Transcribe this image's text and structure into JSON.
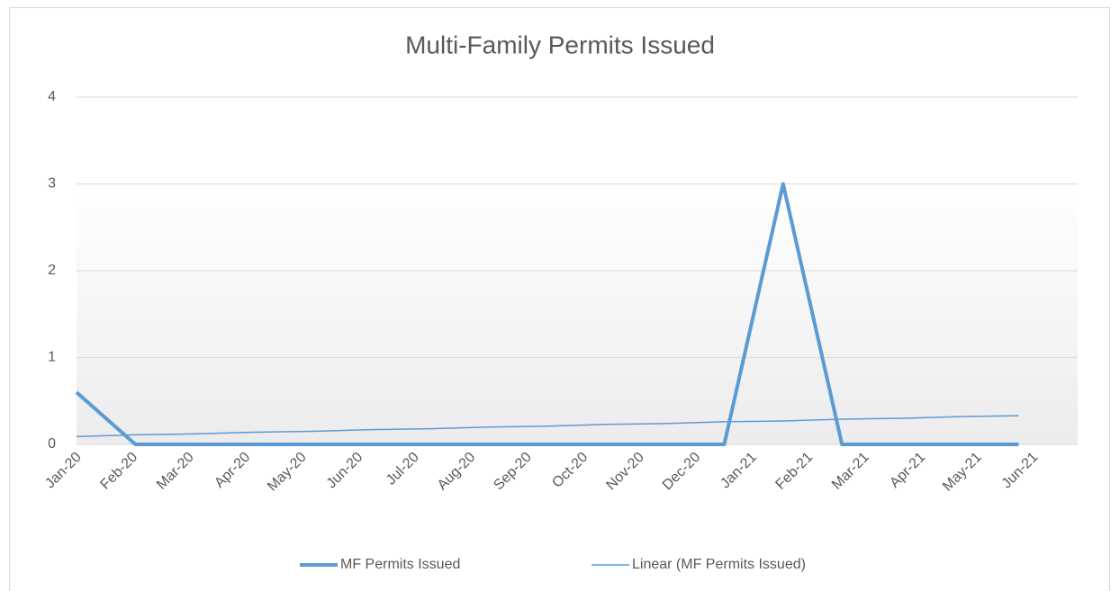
{
  "chart_data": {
    "type": "line",
    "title": "Multi-Family Permits Issued",
    "categories": [
      "Jan-20",
      "Feb-20",
      "Mar-20",
      "Apr-20",
      "May-20",
      "Jun-20",
      "Jul-20",
      "Aug-20",
      "Sep-20",
      "Oct-20",
      "Nov-20",
      "Dec-20",
      "Jan-21",
      "Feb-21",
      "Mar-21",
      "Apr-21",
      "May-21",
      "Jun-21"
    ],
    "series": [
      {
        "name": "MF Permits Issued",
        "color": "#5b9bd5",
        "width": 4,
        "values": [
          0.6,
          0,
          0,
          0,
          0,
          0,
          0,
          0,
          0,
          0,
          0,
          0,
          3,
          0,
          0,
          0,
          0,
          null
        ]
      },
      {
        "name": "Linear (MF Permits Issued)",
        "color": "#5b9bd5",
        "width": 1.5,
        "values": [
          0.09,
          0.11,
          0.12,
          0.14,
          0.15,
          0.17,
          0.18,
          0.2,
          0.21,
          0.23,
          0.24,
          0.26,
          0.27,
          0.29,
          0.3,
          0.32,
          0.33,
          null
        ]
      }
    ],
    "ylim": [
      0,
      4
    ],
    "yticks": [
      0,
      1,
      2,
      3,
      4
    ],
    "grid": true,
    "legend": "bottom"
  }
}
